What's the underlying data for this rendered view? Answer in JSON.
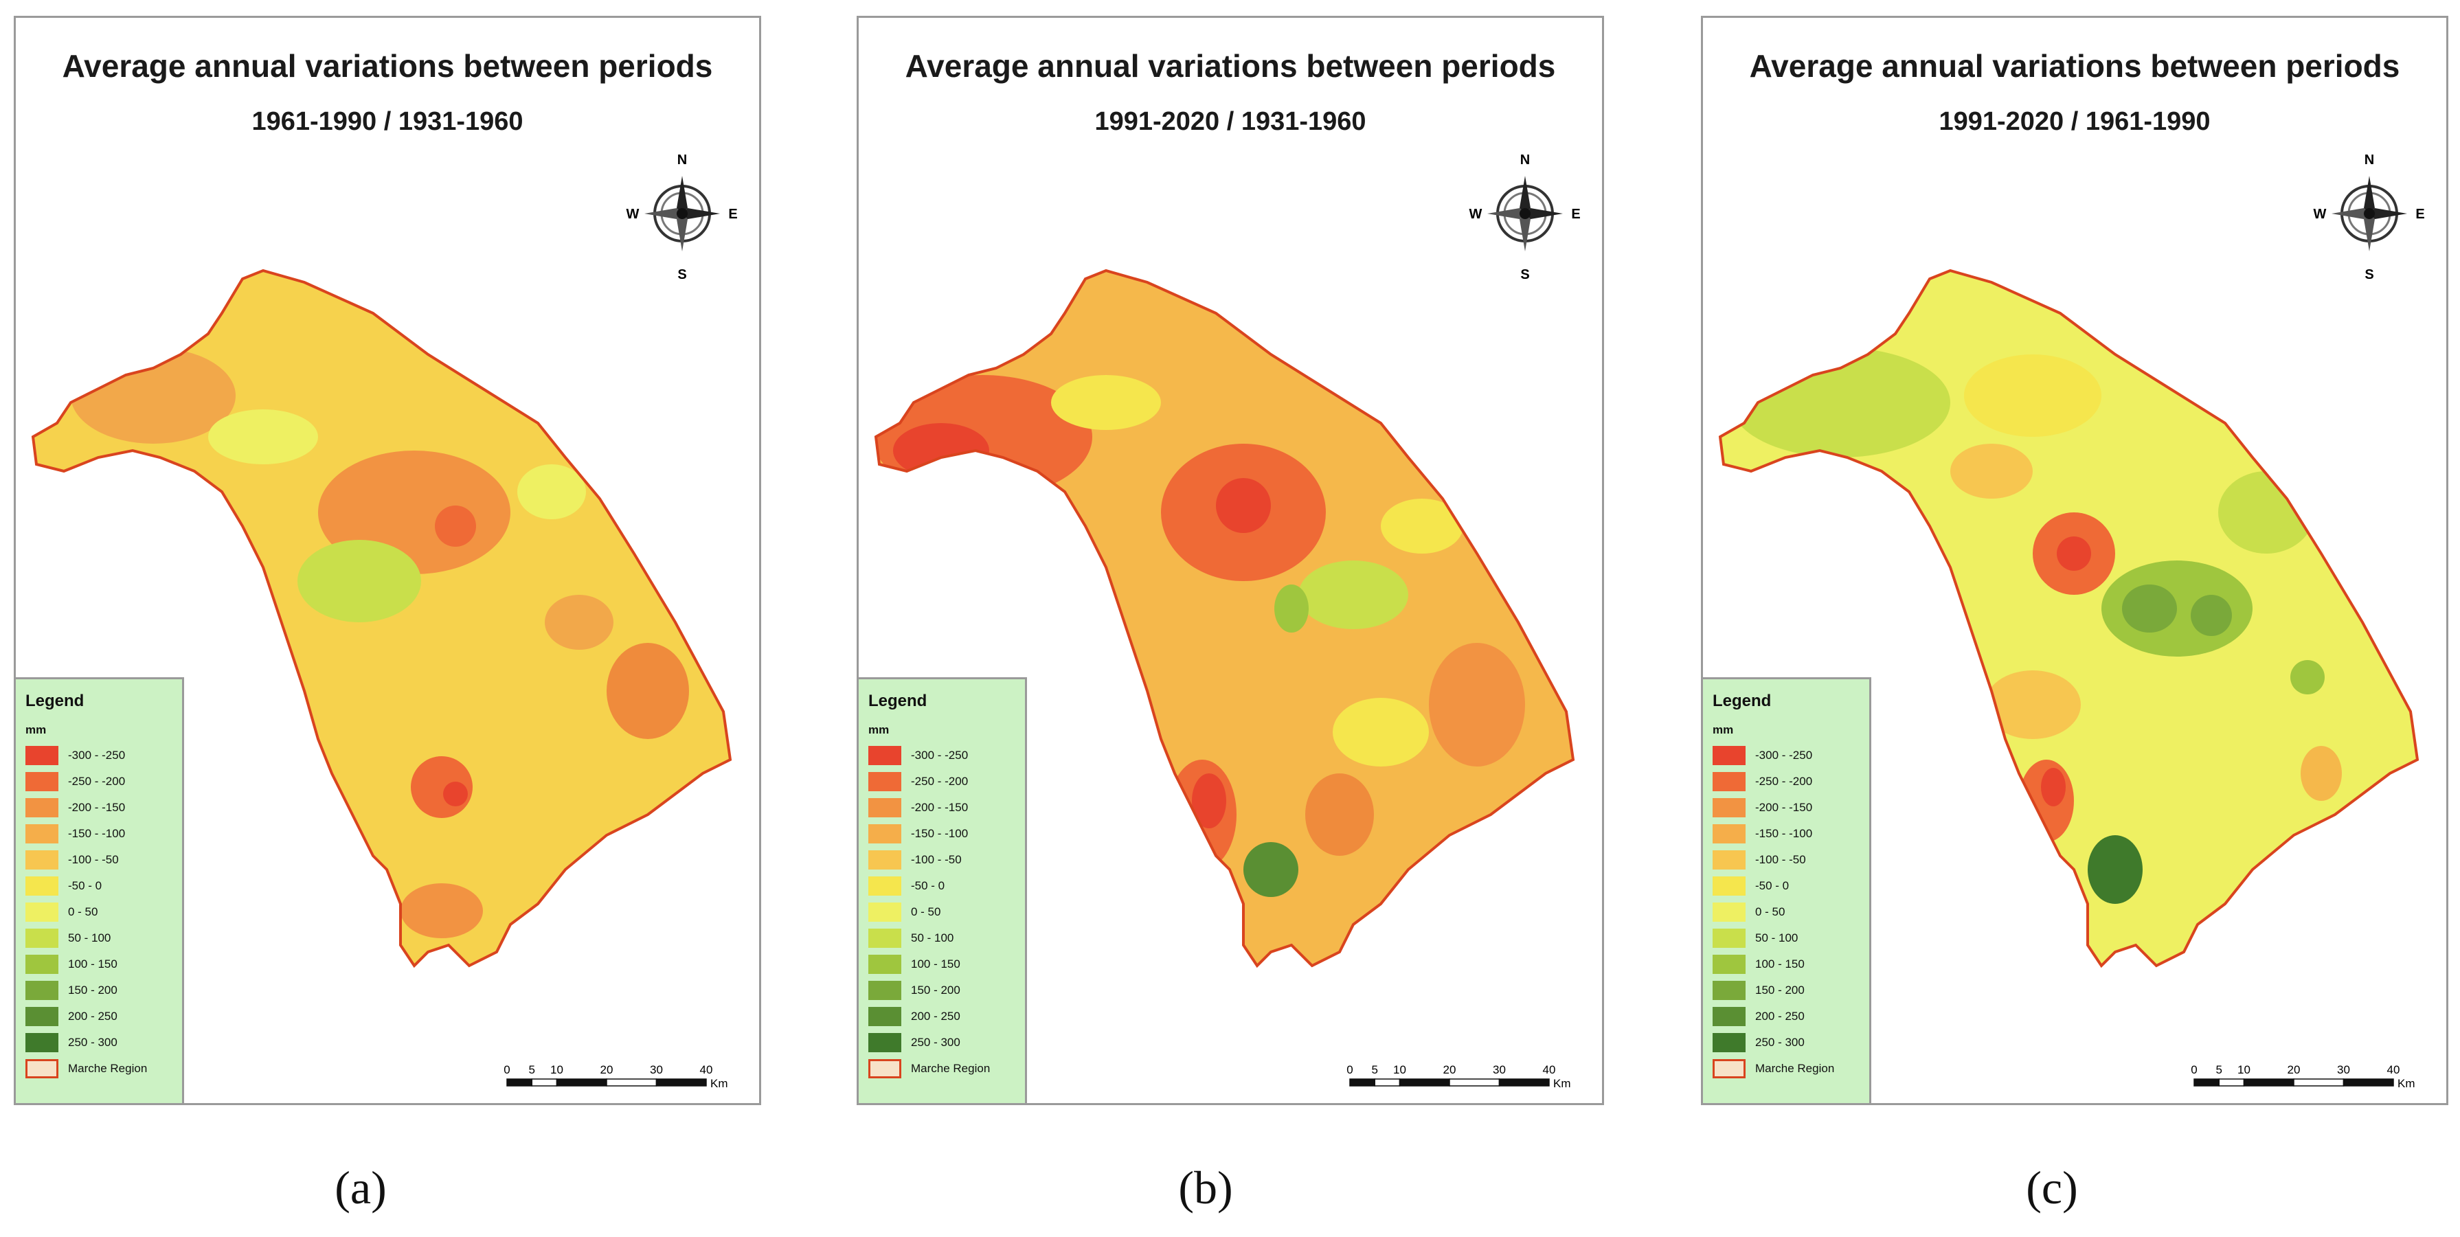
{
  "panels": [
    {
      "id": "a",
      "title": "Average annual variations between periods",
      "subtitle": "1961-1990 / 1931-1960",
      "caption": "(a)"
    },
    {
      "id": "b",
      "title": "Average annual variations between periods",
      "subtitle": "1991-2020 / 1931-1960",
      "caption": "(b)"
    },
    {
      "id": "c",
      "title": "Average annual variations between periods",
      "subtitle": "1991-2020 / 1961-1990",
      "caption": "(c)"
    }
  ],
  "compass": {
    "n": "N",
    "s": "S",
    "e": "E",
    "w": "W"
  },
  "legend": {
    "title": "Legend",
    "unit": "mm",
    "classes": [
      {
        "label": "-300 - -250",
        "color": "#e8442d"
      },
      {
        "label": "-250 - -200",
        "color": "#ef6a36"
      },
      {
        "label": "-200 - -150",
        "color": "#f29342"
      },
      {
        "label": "-150 - -100",
        "color": "#f5ae4a"
      },
      {
        "label": "-100 - -50",
        "color": "#f7c650"
      },
      {
        "label": "-50 - 0",
        "color": "#f5e64d"
      },
      {
        "label": "0 - 50",
        "color": "#eef062"
      },
      {
        "label": "50 - 100",
        "color": "#c9df4b"
      },
      {
        "label": "100 - 150",
        "color": "#9fc63e"
      },
      {
        "label": "150 - 200",
        "color": "#7aa93a"
      },
      {
        "label": "200 - 250",
        "color": "#5a8f33"
      },
      {
        "label": "250 - 300",
        "color": "#3f7a2b"
      }
    ],
    "boundary_label": "Marche Region",
    "boundary_color": "#d9441e"
  },
  "scalebar": {
    "ticks": [
      "0",
      "5",
      "10",
      "20",
      "30",
      "40"
    ],
    "unit": "Km"
  }
}
